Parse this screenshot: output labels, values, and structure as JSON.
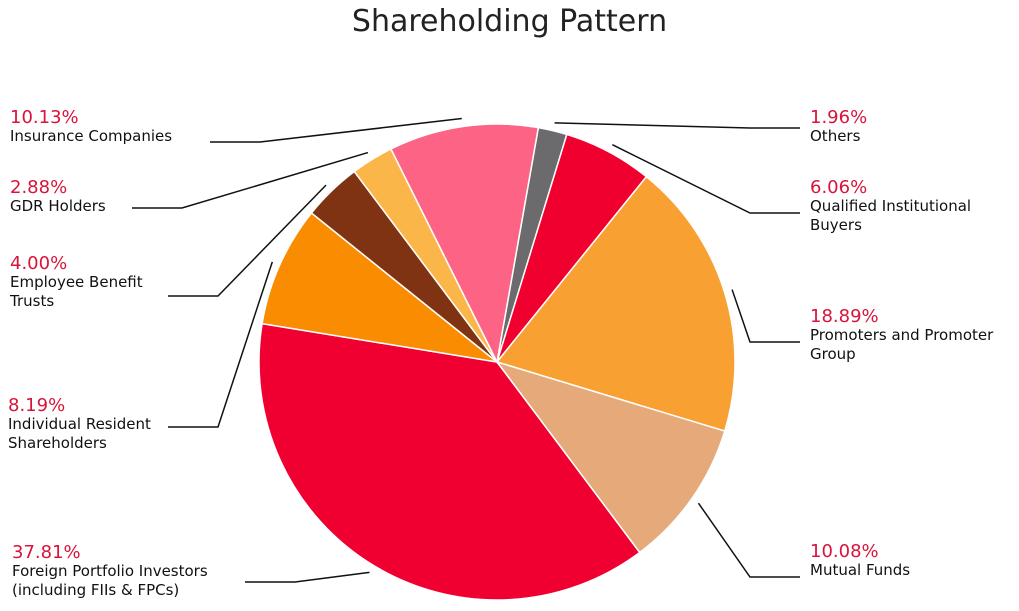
{
  "chart_data": {
    "type": "pie",
    "title": "Shareholding Pattern",
    "categories": [
      "Others",
      "Qualified Institutional Buyers",
      "Promoters and Promoter Group",
      "Mutual Funds",
      "Foreign Portfolio Investors (including FIIs & FPCs)",
      "Individual Resident Shareholders",
      "Employee Benefit Trusts",
      "GDR Holders",
      "Insurance Companies"
    ],
    "values": [
      1.96,
      6.06,
      18.89,
      10.08,
      37.81,
      8.19,
      4.0,
      2.88,
      10.13
    ],
    "value_labels": [
      "1.96%",
      "6.06%",
      "18.89%",
      "10.08%",
      "37.81%",
      "8.19%",
      "4.00%",
      "2.88%",
      "10.13%"
    ],
    "colors": [
      "#6b6b6d",
      "#f0002f",
      "#f9a033",
      "#e5a97a",
      "#ef0030",
      "#f98c00",
      "#7f3313",
      "#fbb64a",
      "#fc6384"
    ]
  }
}
